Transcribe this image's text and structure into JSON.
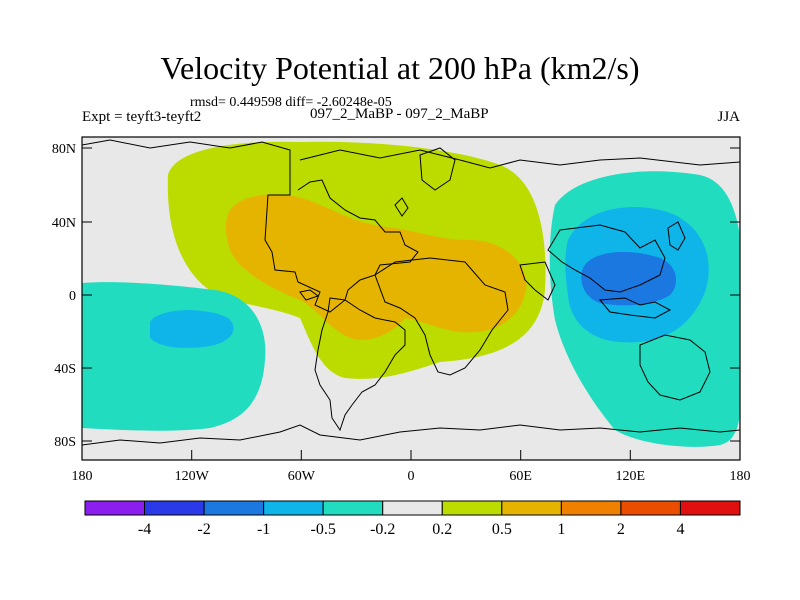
{
  "title": "Velocity Potential at 200 hPa (km2/s)",
  "stats": "rmsd= 0.449598 diff= -2.60248e-05",
  "experiment": "Expt = teyft3-teyft2",
  "case_label": "097_2_MaBP - 097_2_MaBP",
  "season": "JJA",
  "axes": {
    "x_ticks": [
      "180",
      "120W",
      "60W",
      "0",
      "60E",
      "120E",
      "180"
    ],
    "y_ticks": [
      "80N",
      "40N",
      "0",
      "40S",
      "80S"
    ]
  },
  "colorbar": {
    "colors": [
      "#8a1ff0",
      "#2a3ae8",
      "#1b78e0",
      "#0fb4e8",
      "#22dcc0",
      "#e8e8e8",
      "#bcdc00",
      "#e4b400",
      "#f08000",
      "#ea4c00",
      "#e01010"
    ],
    "labels": [
      "-4",
      "-2",
      "-1",
      "-0.5",
      "-0.2",
      "0.2",
      "0.5",
      "1",
      "2",
      "4"
    ]
  }
}
